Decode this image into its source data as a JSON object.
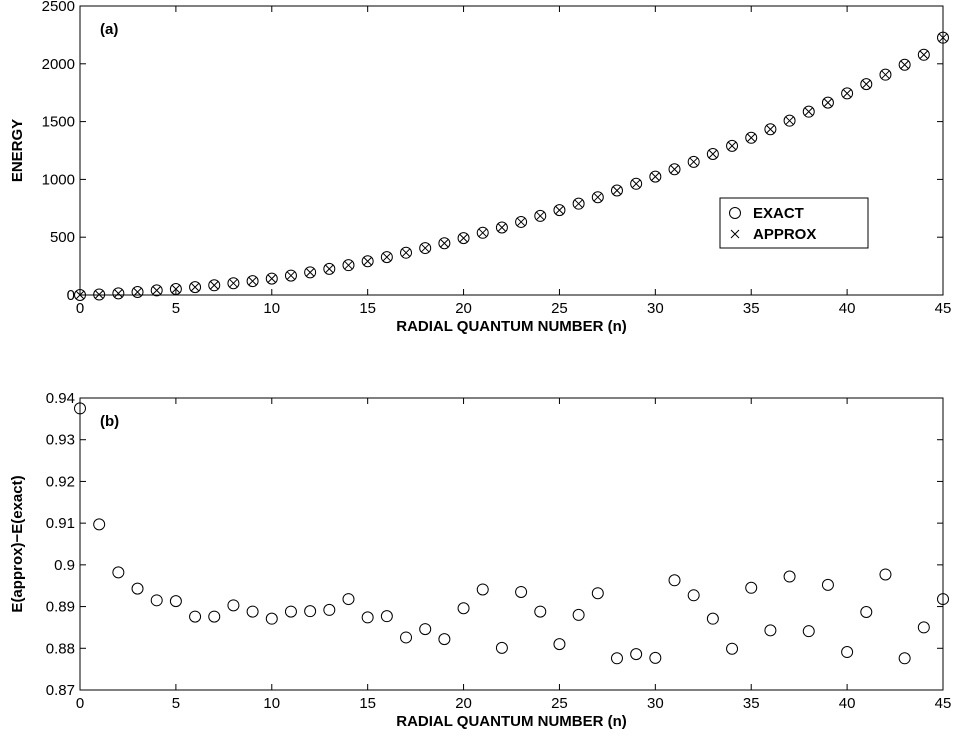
{
  "chart_data": [
    {
      "type": "scatter",
      "panel_label": "(a)",
      "xlabel": "RADIAL QUANTUM NUMBER (n)",
      "ylabel": "ENERGY",
      "xlim": [
        0,
        45
      ],
      "ylim": [
        0,
        2500
      ],
      "xticks": [
        "0",
        "5",
        "10",
        "15",
        "20",
        "25",
        "30",
        "35",
        "40",
        "45"
      ],
      "yticks": [
        "0",
        "500",
        "1000",
        "1500",
        "2000",
        "2500"
      ],
      "legend": {
        "placement": "lower-right-center",
        "entries": [
          {
            "marker": "○",
            "label": "EXACT"
          },
          {
            "marker": "×",
            "label": "APPROX"
          }
        ]
      },
      "x": [
        0,
        1,
        2,
        3,
        4,
        5,
        6,
        7,
        8,
        9,
        10,
        11,
        12,
        13,
        14,
        15,
        16,
        17,
        18,
        19,
        20,
        21,
        22,
        23,
        24,
        25,
        26,
        27,
        28,
        29,
        30,
        31,
        32,
        33,
        34,
        35,
        36,
        37,
        38,
        39,
        40,
        41,
        42,
        43,
        44,
        45
      ],
      "series": [
        {
          "name": "EXACT",
          "marker": "circle",
          "values": [
            0,
            4,
            14,
            26,
            40,
            52,
            68,
            84,
            102,
            120,
            142,
            168,
            196,
            226,
            258,
            292,
            328,
            366,
            406,
            448,
            492,
            538,
            584,
            632,
            684,
            734,
            790,
            846,
            904,
            962,
            1024,
            1088,
            1152,
            1220,
            1290,
            1360,
            1434,
            1508,
            1586,
            1664,
            1744,
            1824,
            1906,
            1992,
            2078,
            2226
          ]
        },
        {
          "name": "APPROX",
          "marker": "x",
          "values": [
            0,
            4,
            14,
            26,
            40,
            52,
            68,
            84,
            102,
            120,
            142,
            168,
            196,
            226,
            258,
            292,
            328,
            366,
            406,
            448,
            492,
            538,
            584,
            632,
            684,
            734,
            790,
            846,
            904,
            962,
            1024,
            1088,
            1152,
            1220,
            1290,
            1360,
            1434,
            1508,
            1586,
            1664,
            1744,
            1824,
            1906,
            1992,
            2078,
            2226
          ]
        }
      ]
    },
    {
      "type": "scatter",
      "panel_label": "(b)",
      "xlabel": "RADIAL QUANTUM NUMBER (n)",
      "ylabel": "E(approx)−E(exact)",
      "xlim": [
        0,
        45
      ],
      "ylim": [
        0.87,
        0.94
      ],
      "xticks": [
        "0",
        "5",
        "10",
        "15",
        "20",
        "25",
        "30",
        "35",
        "40",
        "45"
      ],
      "yticks": [
        "0.87",
        "0.88",
        "0.89",
        "0.9",
        "0.91",
        "0.92",
        "0.93",
        "0.94"
      ],
      "x": [
        0,
        1,
        2,
        3,
        4,
        5,
        6,
        7,
        8,
        9,
        10,
        11,
        12,
        13,
        14,
        15,
        16,
        17,
        18,
        19,
        20,
        21,
        22,
        23,
        24,
        25,
        26,
        27,
        28,
        29,
        30,
        31,
        32,
        33,
        34,
        35,
        36,
        37,
        38,
        39,
        40,
        41,
        42,
        43,
        44,
        45
      ],
      "series": [
        {
          "marker": "circle",
          "values": [
            0.9375,
            0.9097,
            0.8982,
            0.8943,
            0.8915,
            0.8913,
            0.8876,
            0.8876,
            0.8903,
            0.8888,
            0.8871,
            0.8888,
            0.8889,
            0.8892,
            0.8918,
            0.8874,
            0.8877,
            0.8826,
            0.8846,
            0.8822,
            0.8896,
            0.8941,
            0.8801,
            0.8935,
            0.8888,
            0.881,
            0.888,
            0.8932,
            0.8776,
            0.8786,
            0.8777,
            0.8963,
            0.8927,
            0.8871,
            0.8799,
            0.8945,
            0.8843,
            0.8972,
            0.8841,
            0.8952,
            0.8791,
            0.8887,
            0.8977,
            0.8776,
            0.885,
            0.8918
          ]
        }
      ]
    }
  ]
}
